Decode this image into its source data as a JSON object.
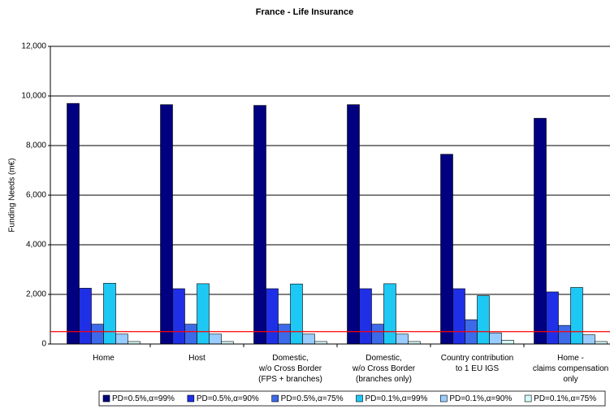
{
  "chart_data": {
    "type": "bar",
    "title": "France - Life Insurance",
    "y_label": "Funding Needs (m€)",
    "categories": [
      "Home",
      "Host",
      "Domestic,\nw/o Cross Border\n(FPS + branches)",
      "Domestic,\nw/o Cross Border\n(branches only)",
      "Country contribution\nto 1 EU IGS",
      "Home -\nclaims compensation\nonly"
    ],
    "series": [
      {
        "name": "PD=0.5%,α=99%",
        "color": "#000080",
        "values": [
          9700,
          9650,
          9620,
          9650,
          7650,
          9100
        ]
      },
      {
        "name": "PD=0.5%,α=90%",
        "color": "#1f2fe6",
        "values": [
          2250,
          2230,
          2230,
          2230,
          2230,
          2100
        ]
      },
      {
        "name": "PD=0.5%,α=75%",
        "color": "#3d6ae8",
        "values": [
          800,
          800,
          800,
          800,
          980,
          750
        ]
      },
      {
        "name": "PD=0.1%,α=99%",
        "color": "#1ec8f5",
        "values": [
          2450,
          2430,
          2420,
          2430,
          1950,
          2280
        ]
      },
      {
        "name": "PD=0.1%,α=90%",
        "color": "#99ccff",
        "values": [
          400,
          400,
          400,
          400,
          450,
          370
        ]
      },
      {
        "name": "PD=0.1%,α=75%",
        "color": "#d4f7f7",
        "values": [
          100,
          100,
          100,
          100,
          150,
          100
        ]
      }
    ],
    "reference_line": {
      "value": 500,
      "color": "#ff0000"
    },
    "ylim": [
      0,
      12000
    ],
    "yticks": [
      0,
      {
        "value": 2000,
        "label": "2,000"
      },
      {
        "value": 4000,
        "label": "4,000"
      },
      {
        "value": 6000,
        "label": "6,000"
      },
      {
        "value": 8000,
        "label": "8,000"
      },
      {
        "value": 10000,
        "label": "10,000"
      },
      {
        "value": 12000,
        "label": "12,000"
      }
    ],
    "grid": true,
    "legend": "bottom"
  }
}
